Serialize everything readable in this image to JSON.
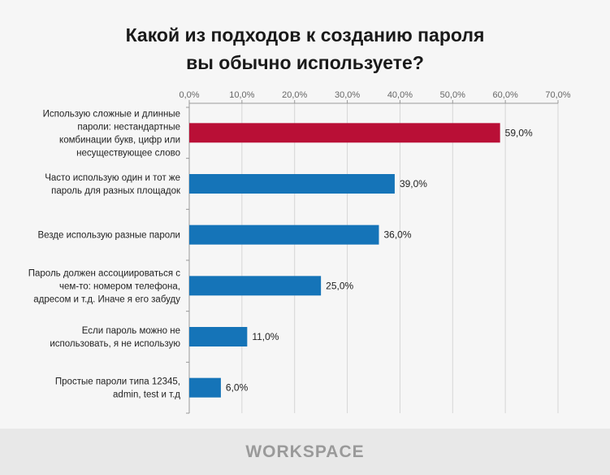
{
  "chart_data": {
    "type": "bar",
    "orientation": "horizontal",
    "title": "Какой из подходов к созданию пароля вы обычно используете?",
    "title_lines": [
      "Какой из подходов к созданию пароля",
      "вы обычно используете?"
    ],
    "categories": [
      [
        "Использую сложные и длинные",
        "пароли: нестандартные",
        "комбинации букв, цифр или",
        "несуществующее слово"
      ],
      [
        "Часто использую один и тот же",
        "пароль для разных площадок"
      ],
      [
        "Везде использую разные пароли"
      ],
      [
        "Пароль должен ассоциироваться с",
        "чем-то: номером телефона,",
        "адресом и т.д. Иначе я его забуду"
      ],
      [
        "Если пароль можно не",
        "использовать, я не использую"
      ],
      [
        "Простые пароли типа 12345,",
        "admin, test и т.д"
      ]
    ],
    "values": [
      59.0,
      39.0,
      36.0,
      25.0,
      11.0,
      6.0
    ],
    "data_labels": [
      "59,0%",
      "39,0%",
      "36,0%",
      "25,0%",
      "11,0%",
      "6,0%"
    ],
    "bar_colors": [
      "#b90f36",
      "#1574b8",
      "#1574b8",
      "#1574b8",
      "#1574b8",
      "#1574b8"
    ],
    "xlim": [
      0,
      70
    ],
    "x_ticks": [
      0,
      10,
      20,
      30,
      40,
      50,
      60,
      70
    ],
    "x_tick_labels": [
      "0,0%",
      "10,0%",
      "20,0%",
      "30,0%",
      "40,0%",
      "50,0%",
      "60,0%",
      "70,0%"
    ],
    "x_axis_position": "top",
    "grid": true,
    "legend": "none"
  },
  "footer": {
    "logo": "WORKSPACE"
  }
}
